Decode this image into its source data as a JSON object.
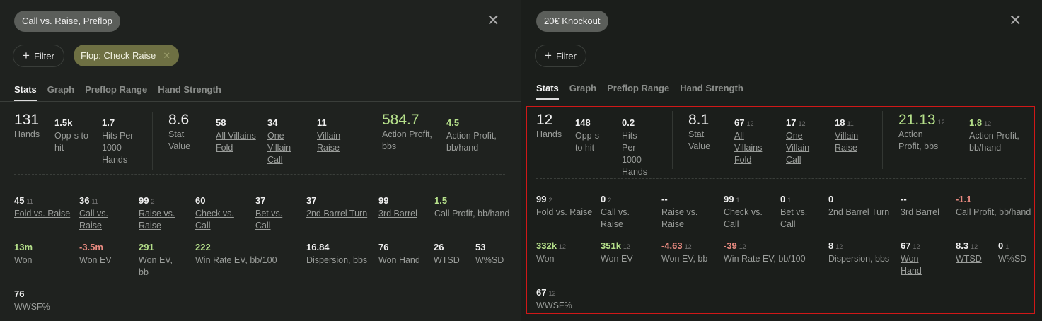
{
  "colors": {
    "positive": "#b5e08a",
    "negative": "#e88a80",
    "highlight_box": "#d01818",
    "filter_chip": "#6e7043"
  },
  "panels": [
    {
      "title": "Call vs. Raise, Preflop",
      "close_icon": "close-icon",
      "filter_label": "Filter",
      "active_filter": "Flop: Check Raise",
      "tabs": [
        "Stats",
        "Graph",
        "Preflop Range",
        "Hand Strength"
      ],
      "active_tab": "Stats",
      "rows": [
        [
          {
            "value": "131",
            "label": "Hands"
          },
          {
            "value": "1.5k",
            "label": "Opp-s to hit"
          },
          {
            "value": "1.7",
            "label": "Hits Per 1000 Hands"
          },
          {
            "value": "8.6",
            "label": "Stat Value"
          },
          {
            "value": "58",
            "label": "All Villains Fold",
            "link": true
          },
          {
            "value": "34",
            "label": "One Villain Call",
            "link": true
          },
          {
            "value": "11",
            "label": "Villain Raise",
            "link": true
          },
          {
            "value": "584.7",
            "label": "Action Profit, bbs",
            "color": "positive"
          },
          {
            "value": "4.5",
            "label": "Action Profit, bb/hand",
            "color": "positive"
          }
        ],
        [
          {
            "value": "45",
            "count": "11",
            "label": "Fold vs. Raise",
            "link": true
          },
          {
            "value": "36",
            "count": "11",
            "label": "Call vs. Raise",
            "link": true
          },
          {
            "value": "99",
            "count": "2",
            "label": "Raise vs. Raise",
            "link": true
          },
          {
            "value": "60",
            "label": "Check vs. Call",
            "link": true
          },
          {
            "value": "37",
            "label": "Bet vs. Call",
            "link": true
          },
          {
            "value": "37",
            "label": "2nd Barrel Turn",
            "link": true
          },
          {
            "value": "99",
            "label": "3rd Barrel",
            "link": true
          },
          {
            "value": "1.5",
            "label": "Call Profit, bb/hand",
            "color": "positive"
          }
        ],
        [
          {
            "value": "13m",
            "label": "Won",
            "color": "positive"
          },
          {
            "value": "-3.5m",
            "label": "Won EV",
            "color": "negative"
          },
          {
            "value": "291",
            "label": "Won EV, bb",
            "color": "positive"
          },
          {
            "value": "222",
            "label": "Win Rate EV, bb/100",
            "color": "positive"
          },
          {
            "value": "16.84",
            "label": "Dispersion, bbs"
          },
          {
            "value": "76",
            "label": "Won Hand",
            "link": true
          },
          {
            "value": "26",
            "label": "WTSD",
            "link": true
          },
          {
            "value": "53",
            "label": "W%SD"
          }
        ],
        [
          {
            "value": "76",
            "label": "WWSF%"
          }
        ]
      ]
    },
    {
      "title": "20€ Knockout",
      "close_icon": "close-icon",
      "filter_label": "Filter",
      "tabs": [
        "Stats",
        "Graph",
        "Preflop Range",
        "Hand Strength"
      ],
      "active_tab": "Stats",
      "rows": [
        [
          {
            "value": "12",
            "label": "Hands"
          },
          {
            "value": "148",
            "label": "Opp-s to hit"
          },
          {
            "value": "0.2",
            "label": "Hits Per 1000 Hands"
          },
          {
            "value": "8.1",
            "label": "Stat Value"
          },
          {
            "value": "67",
            "count": "12",
            "label": "All Villains Fold",
            "link": true
          },
          {
            "value": "17",
            "count": "12",
            "label": "One Villain Call",
            "link": true
          },
          {
            "value": "18",
            "count": "11",
            "label": "Villain Raise",
            "link": true
          },
          {
            "value": "21.13",
            "count": "12",
            "label": "Action Profit, bbs",
            "color": "positive"
          },
          {
            "value": "1.8",
            "count": "12",
            "label": "Action Profit, bb/hand",
            "color": "positive"
          }
        ],
        [
          {
            "value": "99",
            "count": "2",
            "label": "Fold vs. Raise",
            "link": true
          },
          {
            "value": "0",
            "count": "2",
            "label": "Call vs. Raise",
            "link": true
          },
          {
            "value": "--",
            "label": "Raise vs. Raise",
            "link": true
          },
          {
            "value": "99",
            "count": "1",
            "label": "Check vs. Call",
            "link": true
          },
          {
            "value": "0",
            "count": "1",
            "label": "Bet vs. Call",
            "link": true
          },
          {
            "value": "0",
            "label": "2nd Barrel Turn",
            "link": true
          },
          {
            "value": "--",
            "label": "3rd Barrel",
            "link": true
          },
          {
            "value": "-1.1",
            "label": "Call Profit, bb/hand",
            "color": "negative"
          }
        ],
        [
          {
            "value": "332k",
            "count": "12",
            "label": "Won",
            "color": "positive"
          },
          {
            "value": "351k",
            "count": "12",
            "label": "Won EV",
            "color": "positive"
          },
          {
            "value": "-4.63",
            "count": "12",
            "label": "Won EV, bb",
            "color": "negative"
          },
          {
            "value": "-39",
            "count": "12",
            "label": "Win Rate EV, bb/100",
            "color": "negative"
          },
          {
            "value": "8",
            "count": "12",
            "label": "Dispersion, bbs"
          },
          {
            "value": "67",
            "count": "12",
            "label": "Won Hand",
            "link": true
          },
          {
            "value": "8.3",
            "count": "12",
            "label": "WTSD",
            "link": true
          },
          {
            "value": "0",
            "count": "1",
            "label": "W%SD"
          }
        ],
        [
          {
            "value": "67",
            "count": "12",
            "label": "WWSF%"
          }
        ]
      ]
    }
  ]
}
